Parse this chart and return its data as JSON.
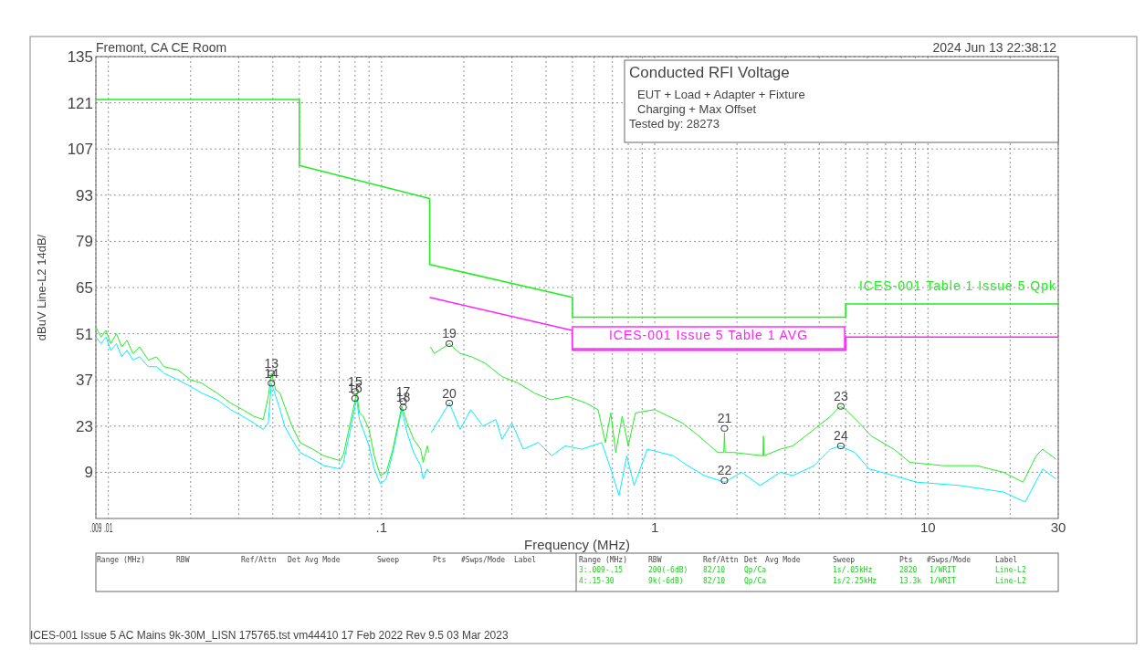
{
  "chart_data": {
    "type": "line",
    "title": "Conducted RFI Voltage",
    "xlabel": "Frequency (MHz)",
    "ylabel": "dBuV Line-L2 14dB/",
    "log": "x",
    "grid": true,
    "legend": false,
    "marker": "none",
    "line_style": "solid",
    "xlim": [
      0.009,
      30
    ],
    "ylim": [
      -5,
      135
    ],
    "xticks": [
      {
        "value": 0.009,
        "label": ".009"
      },
      {
        "value": 0.01,
        "label": ".01"
      },
      {
        "value": 0.02,
        "label": null
      },
      {
        "value": 0.03,
        "label": null
      },
      {
        "value": 0.04,
        "label": null
      },
      {
        "value": 0.05,
        "label": null
      },
      {
        "value": 0.06,
        "label": null
      },
      {
        "value": 0.07,
        "label": null
      },
      {
        "value": 0.08,
        "label": null
      },
      {
        "value": 0.09,
        "label": null
      },
      {
        "value": 0.1,
        "label": ".1"
      },
      {
        "value": 0.2,
        "label": null
      },
      {
        "value": 0.3,
        "label": null
      },
      {
        "value": 0.4,
        "label": null
      },
      {
        "value": 0.5,
        "label": null
      },
      {
        "value": 0.6,
        "label": null
      },
      {
        "value": 0.7,
        "label": null
      },
      {
        "value": 0.8,
        "label": null
      },
      {
        "value": 0.9,
        "label": null
      },
      1,
      {
        "value": 2,
        "label": null
      },
      {
        "value": 3,
        "label": null
      },
      {
        "value": 4,
        "label": null
      },
      {
        "value": 5,
        "label": null
      },
      {
        "value": 6,
        "label": null
      },
      {
        "value": 7,
        "label": null
      },
      {
        "value": 8,
        "label": null
      },
      {
        "value": 9,
        "label": null
      },
      10,
      {
        "value": 20,
        "label": null
      },
      30
    ],
    "yticks": [
      9,
      23,
      37,
      51,
      65,
      79,
      93,
      107,
      121,
      135
    ],
    "series": [
      {
        "name": "ICES-001 Table 1 Issue 5 Qpk",
        "color": "#22ee22",
        "x": [
          0.009,
          0.05,
          0.05,
          0.15,
          0.15,
          0.5,
          0.5,
          5,
          5,
          30
        ],
        "values": [
          122,
          122,
          102,
          92,
          72,
          62,
          56,
          56,
          60,
          60
        ]
      },
      {
        "name": "ICES-001 Issue 5 Table 1 AVG",
        "color": "#ff22ff",
        "x": [
          0.15,
          0.5,
          0.5,
          5,
          5,
          30
        ],
        "values": [
          62,
          52,
          46,
          46,
          50,
          50
        ]
      },
      {
        "color": "#00f0ff",
        "x": [
          0.009,
          0.0094,
          0.0098,
          0.0102,
          0.0107,
          0.0112,
          0.0117,
          0.0123,
          0.013,
          0.014,
          0.015,
          0.016,
          0.018,
          0.02,
          0.022,
          0.025,
          0.028,
          0.031,
          0.034,
          0.0369,
          0.0385,
          0.0395,
          0.041,
          0.0425,
          0.0442,
          0.047,
          0.0503,
          0.056,
          0.0615,
          0.0706,
          0.0726,
          0.0787,
          0.081,
          0.083,
          0.0856,
          0.09,
          0.094,
          0.099,
          0.104,
          0.11,
          0.1186,
          0.124,
          0.131,
          0.139,
          0.142,
          0.147,
          0.149,
          0.15,
          0.152,
          0.177,
          0.194,
          0.212,
          0.235,
          0.262,
          0.276,
          0.3,
          0.33,
          0.375,
          0.42,
          0.47,
          0.54,
          0.64,
          0.69,
          0.74,
          0.79,
          0.84,
          0.94,
          1.17,
          1.32,
          1.52,
          1.8,
          2.08,
          2.43,
          2.88,
          3.2,
          3.83,
          4.4,
          4.77,
          5.4,
          6.1,
          7.5,
          9.1,
          13.1,
          18.9,
          22.7,
          26.3,
          29.4
        ],
        "values": [
          50,
          48,
          50,
          46,
          48,
          44,
          46,
          43,
          44,
          41,
          41,
          39,
          37,
          35,
          33,
          31,
          28,
          26,
          24,
          22,
          24,
          36,
          32,
          28,
          23,
          19,
          15,
          13,
          11,
          10,
          12,
          26,
          31,
          25,
          22,
          17,
          10,
          5.5,
          7,
          15,
          28,
          21,
          15,
          11,
          7,
          10,
          9,
          null,
          21,
          30,
          22,
          28,
          23,
          25,
          19,
          24,
          16,
          18,
          14,
          17,
          16,
          18,
          10,
          2,
          14,
          5,
          16,
          14,
          11,
          8,
          6,
          9,
          5,
          9,
          8,
          11,
          16,
          17,
          15,
          10,
          8,
          6,
          5,
          3,
          0,
          10,
          7
        ]
      },
      {
        "color": "#22ee22",
        "x": [
          0.009,
          0.0094,
          0.0098,
          0.0102,
          0.0107,
          0.0112,
          0.0117,
          0.0123,
          0.013,
          0.014,
          0.015,
          0.016,
          0.018,
          0.02,
          0.022,
          0.025,
          0.028,
          0.031,
          0.034,
          0.0369,
          0.0385,
          0.0395,
          0.041,
          0.0425,
          0.0442,
          0.047,
          0.0503,
          0.056,
          0.0615,
          0.0706,
          0.0726,
          0.0787,
          0.081,
          0.083,
          0.0856,
          0.09,
          0.094,
          0.099,
          0.104,
          0.11,
          0.1186,
          0.124,
          0.131,
          0.139,
          0.142,
          0.147,
          0.149,
          0.15,
          0.151,
          0.156,
          0.177,
          0.194,
          0.214,
          0.24,
          0.276,
          0.317,
          0.363,
          0.416,
          0.48,
          0.56,
          0.62,
          0.66,
          0.69,
          0.72,
          0.76,
          0.8,
          0.85,
          1,
          1.26,
          1.45,
          1.7,
          1.79,
          1.8,
          1.81,
          1.95,
          2.49,
          2.5,
          2.51,
          2.88,
          3.2,
          3.83,
          4.4,
          4.77,
          5,
          5.6,
          6.2,
          7.5,
          8.6,
          11.4,
          15.1,
          18.9,
          22.3,
          24.9,
          26.3,
          29.4
        ],
        "values": [
          53,
          50,
          52,
          48,
          51,
          47,
          49,
          45,
          47,
          43,
          44,
          41,
          40,
          37,
          36,
          33,
          30,
          28,
          26,
          25,
          32,
          39,
          34,
          33,
          29,
          23,
          18,
          16,
          14,
          12.5,
          14.5,
          28,
          33,
          27,
          26,
          22,
          14,
          8,
          9,
          16,
          29,
          24,
          19,
          16,
          12,
          17,
          15,
          null,
          47,
          45,
          48,
          45,
          44,
          42,
          38,
          36,
          33,
          31,
          32,
          30,
          28,
          18,
          27,
          15,
          26,
          17,
          27,
          28,
          24,
          20,
          15,
          15,
          21,
          15,
          15,
          14,
          20,
          14,
          16,
          17,
          22,
          26,
          29,
          28,
          24,
          20,
          16,
          12,
          11,
          11,
          9,
          6,
          14,
          16,
          13
        ]
      }
    ],
    "annotations": [
      {
        "text": "13",
        "x": 0.0395,
        "y": 39
      },
      {
        "text": "14",
        "x": 0.0395,
        "y": 36
      },
      {
        "text": "15",
        "x": 0.08,
        "y": 33.5
      },
      {
        "text": "16",
        "x": 0.08,
        "y": 31.4
      },
      {
        "text": "17",
        "x": 0.12,
        "y": 30.5
      },
      {
        "text": "18",
        "x": 0.12,
        "y": 28.7
      },
      {
        "text": "19",
        "x": 0.177,
        "y": 48
      },
      {
        "text": "20",
        "x": 0.177,
        "y": 30
      },
      {
        "text": "21",
        "x": 1.8,
        "y": 22.3
      },
      {
        "text": "22",
        "x": 1.8,
        "y": 6.5
      },
      {
        "text": "23",
        "x": 4.8,
        "y": 29
      },
      {
        "text": "24",
        "x": 4.8,
        "y": 17
      },
      "Fremont, CA CE Room",
      "2024 Jun 13   22:38:12",
      "EUT + Load + Adapter + Fixture",
      "Charging + Max Offset",
      "Tested by: 28273",
      "ICES-001 Issue 5 AC Mains 9k-30M_LISN 175765.tst vm44410 17 Feb 2022 Rev 9.5 03 Mar 2023",
      "Range (MHz)",
      "RBW",
      "Ref/Attn",
      "Det",
      "Avg Mode",
      "Sweep",
      "Pts",
      "#Swps/Mode",
      "Label",
      "Range (MHz)",
      "RBW",
      "Ref/Attn",
      "Det",
      "Avg Mode",
      "Sweep",
      "Pts",
      "#Swps/Mode",
      "Label",
      "3:.009-.15",
      "200(-6dB)",
      "82/10",
      "Qp/Ca",
      "1s/.05kHz",
      "2820",
      "1/WRIT",
      "Line-L2",
      "4:.15-30",
      "9k(-6dB)",
      "82/10",
      "Qp/Ca",
      "1s/2.25kHz",
      "13.3k",
      "1/WRIT",
      "Line-L2"
    ]
  }
}
